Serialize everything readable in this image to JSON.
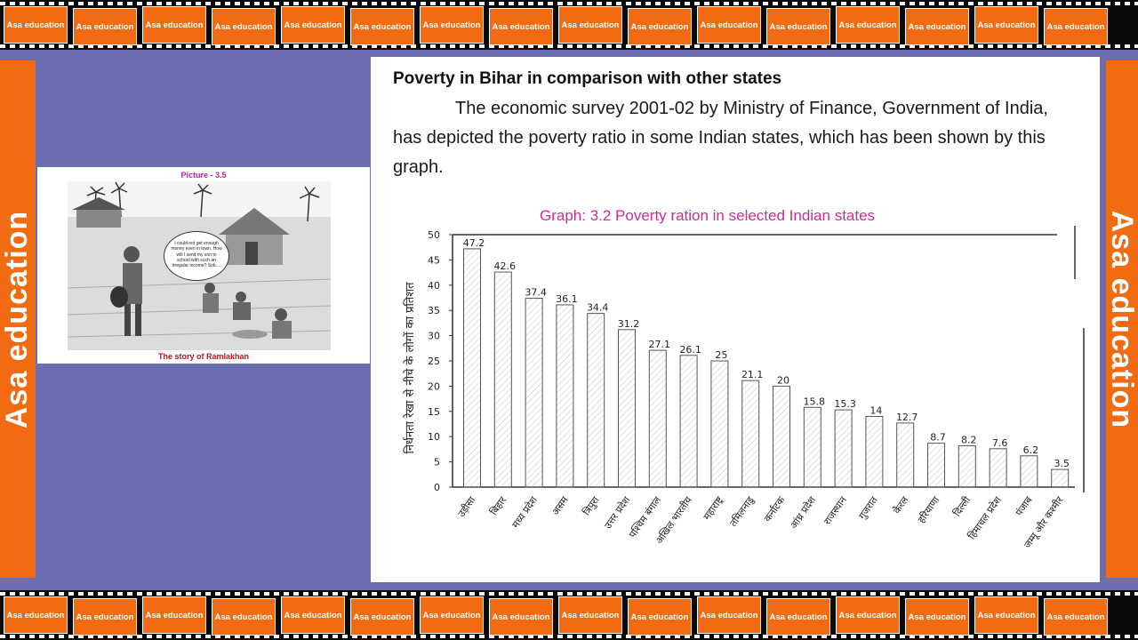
{
  "banner": {
    "tile_label": "Asa education",
    "side_label": "Asa education",
    "orange": "#f26a12"
  },
  "picture": {
    "label": "Picture - 3.5",
    "speech": "I could not get enough money even in town. How will I send my son to school with such an irregular income? Sob....",
    "caption": "The story of Ramlakhan"
  },
  "document": {
    "heading": "Poverty in Bihar in comparison with other states",
    "paragraph": "The economic survey 2001-02 by Ministry of Finance, Government of India, has depicted the poverty ratio in some Indian states, which has been shown by this graph."
  },
  "chart_data": {
    "type": "bar",
    "title": "Graph: 3.2  Poverty ration in selected Indian states",
    "ylabel": "निर्धनता रेखा से नीचे के लोगों का प्रतिशत",
    "xlabel": "",
    "ylim": [
      0,
      50
    ],
    "yticks": [
      0,
      5,
      10,
      15,
      20,
      25,
      30,
      35,
      40,
      45,
      50
    ],
    "categories": [
      "उड़ीसा",
      "बिहार",
      "मध्य प्रदेश",
      "असम",
      "त्रिपुरा",
      "उत्तर प्रदेश",
      "पश्चिम बंगाल",
      "अखिल भारतीय",
      "महाराष्ट्र",
      "तमिलनाडु",
      "कर्नाटक",
      "आंध्र प्रदेश",
      "राजस्थान",
      "गुजरात",
      "केरल",
      "हरियाणा",
      "दिल्ली",
      "हिमाचल प्रदेश",
      "पंजाब",
      "जम्मू और कश्मीर"
    ],
    "values": [
      47.2,
      42.6,
      37.4,
      36.1,
      34.4,
      31.2,
      27.1,
      26.1,
      25,
      21.1,
      20,
      15.8,
      15.3,
      14,
      12.7,
      8.7,
      8.2,
      7.6,
      6.2,
      3.5
    ],
    "value_labels": [
      "47.2",
      "42.6",
      "37.4",
      "36.1",
      "34.4",
      "31.2",
      "27.1",
      "26.1",
      "25",
      "21.1",
      "20",
      "15.8",
      "15.3",
      "14",
      "12.7",
      "8.7",
      "8.2",
      "7.6",
      "6.2",
      "3.5"
    ],
    "grid": false,
    "legend": "none"
  }
}
